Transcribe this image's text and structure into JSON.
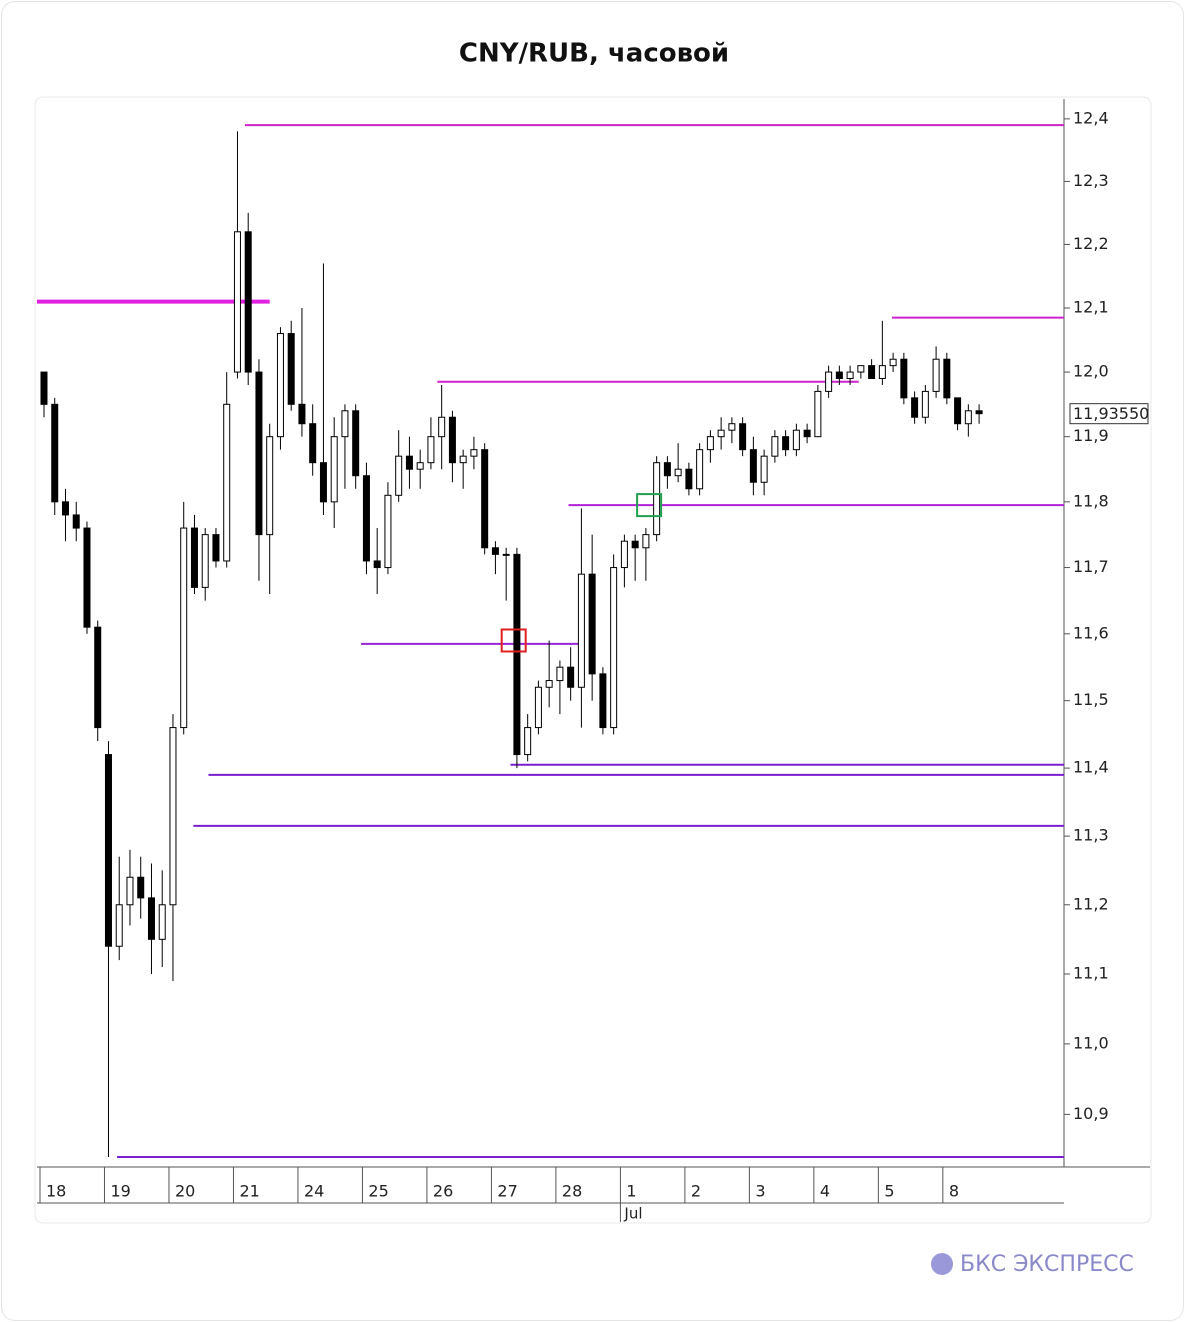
{
  "chart_data": {
    "type": "candlestick",
    "title": "CNY/RUB, часовой",
    "log_scale": true,
    "xlim": [
      -0.65,
      94.9
    ],
    "ylim": [
      10.826,
      12.432
    ],
    "yticks": [
      {
        "value": 12.4,
        "label": "12,4"
      },
      {
        "value": 12.3,
        "label": "12,3"
      },
      {
        "value": 12.2,
        "label": "12,2"
      },
      {
        "value": 12.1,
        "label": "12,1"
      },
      {
        "value": 12.0,
        "label": "12,0"
      },
      {
        "value": 11.9,
        "label": "11,9"
      },
      {
        "value": 11.8,
        "label": "11,8"
      },
      {
        "value": 11.7,
        "label": "11,7"
      },
      {
        "value": 11.6,
        "label": "11,6"
      },
      {
        "value": 11.5,
        "label": "11,5"
      },
      {
        "value": 11.4,
        "label": "11,4"
      },
      {
        "value": 11.3,
        "label": "11,3"
      },
      {
        "value": 11.2,
        "label": "11,2"
      },
      {
        "value": 11.1,
        "label": "11,1"
      },
      {
        "value": 11.0,
        "label": "11,0"
      },
      {
        "value": 10.9,
        "label": "10,9"
      }
    ],
    "xticks": [
      {
        "value": 0,
        "label": "18"
      },
      {
        "value": 6,
        "label": "19"
      },
      {
        "value": 12,
        "label": "20"
      },
      {
        "value": 18,
        "label": "21"
      },
      {
        "value": 24,
        "label": "24"
      },
      {
        "value": 30,
        "label": "25"
      },
      {
        "value": 36,
        "label": "26"
      },
      {
        "value": 42,
        "label": "27"
      },
      {
        "value": 48,
        "label": "28"
      },
      {
        "value": 54,
        "label": "1"
      },
      {
        "value": 60,
        "label": "2"
      },
      {
        "value": 66,
        "label": "3"
      },
      {
        "value": 72,
        "label": "4"
      },
      {
        "value": 78,
        "label": "5"
      },
      {
        "value": 84,
        "label": "8"
      }
    ],
    "x_sublabel": {
      "value": 54,
      "label": "Jul"
    },
    "up_color": "#ffffff",
    "down_color": "#000000",
    "ohlc": [
      [
        12.0,
        12.0,
        11.93,
        11.95
      ],
      [
        11.95,
        11.96,
        11.78,
        11.8
      ],
      [
        11.8,
        11.82,
        11.74,
        11.78
      ],
      [
        11.78,
        11.8,
        11.74,
        11.76
      ],
      [
        11.76,
        11.77,
        11.6,
        11.61
      ],
      [
        11.61,
        11.62,
        11.44,
        11.46
      ],
      [
        11.42,
        11.44,
        10.84,
        11.14
      ],
      [
        11.14,
        11.27,
        11.12,
        11.2
      ],
      [
        11.2,
        11.28,
        11.17,
        11.24
      ],
      [
        11.24,
        11.27,
        11.18,
        11.21
      ],
      [
        11.21,
        11.26,
        11.1,
        11.15
      ],
      [
        11.15,
        11.25,
        11.11,
        11.2
      ],
      [
        11.2,
        11.48,
        11.09,
        11.46
      ],
      [
        11.46,
        11.8,
        11.45,
        11.76
      ],
      [
        11.76,
        11.78,
        11.66,
        11.67
      ],
      [
        11.67,
        11.76,
        11.65,
        11.75
      ],
      [
        11.75,
        11.76,
        11.7,
        11.71
      ],
      [
        11.71,
        12.0,
        11.7,
        11.95
      ],
      [
        12.0,
        12.38,
        11.99,
        12.22
      ],
      [
        12.22,
        12.25,
        11.98,
        12.0
      ],
      [
        12.0,
        12.02,
        11.68,
        11.75
      ],
      [
        11.75,
        11.92,
        11.66,
        11.9
      ],
      [
        11.9,
        12.07,
        11.88,
        12.06
      ],
      [
        12.06,
        12.08,
        11.94,
        11.95
      ],
      [
        11.95,
        12.1,
        11.9,
        11.92
      ],
      [
        11.92,
        11.95,
        11.84,
        11.86
      ],
      [
        11.86,
        12.17,
        11.78,
        11.8
      ],
      [
        11.8,
        11.93,
        11.76,
        11.9
      ],
      [
        11.9,
        11.95,
        11.82,
        11.94
      ],
      [
        11.94,
        11.95,
        11.82,
        11.84
      ],
      [
        11.84,
        11.86,
        11.69,
        11.71
      ],
      [
        11.71,
        11.76,
        11.66,
        11.7
      ],
      [
        11.7,
        11.83,
        11.69,
        11.81
      ],
      [
        11.81,
        11.91,
        11.8,
        11.87
      ],
      [
        11.87,
        11.9,
        11.82,
        11.85
      ],
      [
        11.85,
        11.88,
        11.82,
        11.86
      ],
      [
        11.86,
        11.93,
        11.85,
        11.9
      ],
      [
        11.9,
        11.98,
        11.85,
        11.93
      ],
      [
        11.93,
        11.94,
        11.83,
        11.86
      ],
      [
        11.86,
        11.88,
        11.82,
        11.87
      ],
      [
        11.87,
        11.9,
        11.85,
        11.88
      ],
      [
        11.88,
        11.89,
        11.72,
        11.73
      ],
      [
        11.73,
        11.74,
        11.69,
        11.72
      ],
      [
        11.72,
        11.73,
        11.65,
        11.72
      ],
      [
        11.72,
        11.73,
        11.4,
        11.42
      ],
      [
        11.42,
        11.48,
        11.41,
        11.46
      ],
      [
        11.46,
        11.53,
        11.45,
        11.52
      ],
      [
        11.52,
        11.59,
        11.49,
        11.53
      ],
      [
        11.53,
        11.56,
        11.48,
        11.55
      ],
      [
        11.55,
        11.58,
        11.5,
        11.52
      ],
      [
        11.52,
        11.79,
        11.46,
        11.69
      ],
      [
        11.69,
        11.75,
        11.5,
        11.54
      ],
      [
        11.54,
        11.55,
        11.45,
        11.46
      ],
      [
        11.46,
        11.72,
        11.45,
        11.7
      ],
      [
        11.7,
        11.75,
        11.67,
        11.74
      ],
      [
        11.74,
        11.75,
        11.68,
        11.73
      ],
      [
        11.73,
        11.76,
        11.68,
        11.75
      ],
      [
        11.75,
        11.87,
        11.74,
        11.86
      ],
      [
        11.86,
        11.87,
        11.82,
        11.84
      ],
      [
        11.84,
        11.89,
        11.83,
        11.85
      ],
      [
        11.85,
        11.86,
        11.81,
        11.82
      ],
      [
        11.82,
        11.89,
        11.81,
        11.88
      ],
      [
        11.88,
        11.91,
        11.86,
        11.9
      ],
      [
        11.9,
        11.93,
        11.88,
        11.91
      ],
      [
        11.91,
        11.93,
        11.89,
        11.92
      ],
      [
        11.92,
        11.93,
        11.87,
        11.88
      ],
      [
        11.88,
        11.9,
        11.81,
        11.83
      ],
      [
        11.83,
        11.88,
        11.81,
        11.87
      ],
      [
        11.87,
        11.91,
        11.86,
        11.9
      ],
      [
        11.9,
        11.91,
        11.87,
        11.88
      ],
      [
        11.88,
        11.92,
        11.87,
        11.91
      ],
      [
        11.91,
        11.92,
        11.89,
        11.9
      ],
      [
        11.9,
        11.98,
        11.9,
        11.97
      ],
      [
        11.97,
        12.01,
        11.96,
        12.0
      ],
      [
        12.0,
        12.01,
        11.98,
        11.99
      ],
      [
        11.99,
        12.01,
        11.98,
        12.0
      ],
      [
        12.0,
        12.01,
        11.99,
        12.01
      ],
      [
        12.01,
        12.02,
        11.99,
        11.99
      ],
      [
        11.99,
        12.08,
        11.98,
        12.01
      ],
      [
        12.01,
        12.03,
        12.0,
        12.02
      ],
      [
        12.02,
        12.03,
        11.95,
        11.96
      ],
      [
        11.96,
        11.97,
        11.92,
        11.93
      ],
      [
        11.93,
        11.98,
        11.92,
        11.97
      ],
      [
        11.97,
        12.04,
        11.96,
        12.02
      ],
      [
        12.02,
        12.03,
        11.95,
        11.96
      ],
      [
        11.96,
        11.96,
        11.91,
        11.92
      ],
      [
        11.92,
        11.95,
        11.9,
        11.94
      ],
      [
        11.94,
        11.95,
        11.92,
        11.9355
      ]
    ],
    "levels": [
      {
        "value": 12.39,
        "from": 18.7,
        "to": 94.9,
        "color": "#cc22cc",
        "width": 2
      },
      {
        "value": 12.11,
        "from": -0.65,
        "to": 21.0,
        "color": "#e020e0",
        "width": 4
      },
      {
        "value": 12.085,
        "from": 78.9,
        "to": 94.9,
        "color": "#cc22cc",
        "width": 2
      },
      {
        "value": 11.985,
        "from": 36.6,
        "to": 75.8,
        "color": "#cc22cc",
        "width": 2
      },
      {
        "value": 11.795,
        "from": 48.8,
        "to": 94.9,
        "color": "#b020d8",
        "width": 2
      },
      {
        "value": 11.585,
        "from": 29.5,
        "to": 49.9,
        "color": "#9a24d4",
        "width": 2
      },
      {
        "value": 11.405,
        "from": 43.4,
        "to": 94.9,
        "color": "#7a1fd0",
        "width": 2
      },
      {
        "value": 11.39,
        "from": 15.3,
        "to": 94.9,
        "color": "#7a1fd0",
        "width": 2
      },
      {
        "value": 11.315,
        "from": 13.9,
        "to": 94.9,
        "color": "#7a1fd0",
        "width": 2
      },
      {
        "value": 10.84,
        "from": 6.8,
        "to": 94.9,
        "color": "#7a1fd0",
        "width": 2
      }
    ],
    "markers": [
      {
        "x": 43.7,
        "y": 11.59,
        "color": "#e02020"
      },
      {
        "x": 56.3,
        "y": 11.795,
        "color": "#20a050"
      }
    ],
    "last_price": {
      "value": 11.9355,
      "label": "11,93550"
    }
  },
  "brand": "БКС ЭКСПРЕСС"
}
